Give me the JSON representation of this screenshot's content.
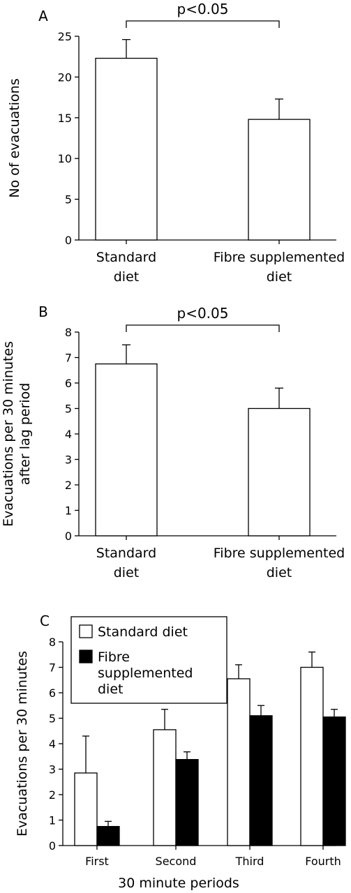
{
  "chart_data": [
    {
      "panel": "A",
      "type": "bar",
      "categories": [
        [
          "Standard",
          "diet"
        ],
        [
          "Fibre supplemented",
          "diet"
        ]
      ],
      "values": [
        22.3,
        14.8
      ],
      "errors": [
        2.3,
        2.5
      ],
      "ylabel": "No of evacuations",
      "ylim": [
        0,
        25
      ],
      "yticks": [
        0,
        5,
        10,
        15,
        20,
        25
      ],
      "significance": "p<0.05",
      "bar_fill": "#ffffff"
    },
    {
      "panel": "B",
      "type": "bar",
      "categories": [
        [
          "Standard",
          "diet"
        ],
        [
          "Fibre supplemented",
          "diet"
        ]
      ],
      "values": [
        6.75,
        5.0
      ],
      "errors": [
        0.75,
        0.8
      ],
      "ylabel": [
        "Evacuations per 30 minutes",
        "after lag period"
      ],
      "ylim": [
        0,
        8
      ],
      "yticks": [
        0,
        1,
        2,
        3,
        4,
        5,
        6,
        7,
        8
      ],
      "significance": "p<0.05",
      "bar_fill": "#ffffff"
    },
    {
      "panel": "C",
      "type": "bar",
      "categories": [
        "First",
        "Second",
        "Third",
        "Fourth"
      ],
      "series": [
        {
          "name": "Standard diet",
          "legend": [
            "Standard diet"
          ],
          "color": "#ffffff",
          "values": [
            2.85,
            4.55,
            6.55,
            7.0
          ],
          "errors": [
            1.45,
            0.8,
            0.55,
            0.6
          ]
        },
        {
          "name": "Fibre supplemented diet",
          "legend": [
            "Fibre",
            "supplemented",
            "diet"
          ],
          "color": "#000000",
          "values": [
            0.75,
            3.38,
            5.1,
            5.05
          ],
          "errors": [
            0.2,
            0.3,
            0.4,
            0.3
          ]
        }
      ],
      "xlabel": "30 minute periods",
      "ylabel": "Evacuations per 30 minutes",
      "ylim": [
        0,
        8
      ],
      "yticks": [
        0,
        1,
        2,
        3,
        4,
        5,
        6,
        7,
        8
      ],
      "legend_position": "top-left"
    }
  ]
}
